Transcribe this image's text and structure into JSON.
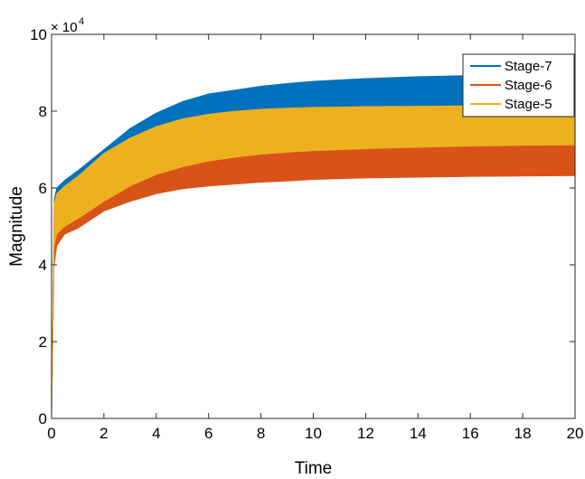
{
  "chart_data": {
    "type": "area",
    "xlabel": "Time",
    "ylabel": "Magnitude",
    "xlim": [
      0,
      20
    ],
    "ylim": [
      0,
      10
    ],
    "y_multiplier_label": {
      "base": "× 10",
      "exponent": "4"
    },
    "x_ticks": [
      "0",
      "2",
      "4",
      "6",
      "8",
      "10",
      "12",
      "14",
      "16",
      "18",
      "20"
    ],
    "y_ticks": [
      "0",
      "2",
      "4",
      "6",
      "8",
      "10"
    ],
    "legend_position": "top-right",
    "grid": false,
    "x": [
      0,
      0.1,
      0.2,
      0.5,
      1,
      2,
      3,
      4,
      5,
      6,
      7,
      8,
      9,
      10,
      12,
      14,
      16,
      18,
      20
    ],
    "series": [
      {
        "name": "Stage-7",
        "color": "#0072BD",
        "upper": [
          0,
          5.7,
          6.0,
          6.2,
          6.45,
          7.0,
          7.55,
          7.95,
          8.25,
          8.45,
          8.55,
          8.65,
          8.72,
          8.78,
          8.85,
          8.9,
          8.93,
          8.95,
          8.96
        ],
        "lower": [
          0,
          4.5,
          4.85,
          5.25,
          5.6,
          6.35,
          6.8,
          7.1,
          7.35,
          7.52,
          7.64,
          7.74,
          7.8,
          7.86,
          7.94,
          7.99,
          8.02,
          8.05,
          8.07
        ]
      },
      {
        "name": "Stage-6",
        "color": "#D95319",
        "upper": [
          0,
          4.8,
          5.1,
          5.45,
          5.8,
          6.4,
          6.8,
          7.05,
          7.3,
          7.5,
          7.62,
          7.72,
          7.8,
          7.86,
          7.95,
          8.0,
          8.04,
          8.07,
          8.09
        ],
        "lower": [
          0,
          4.0,
          4.5,
          4.8,
          4.95,
          5.4,
          5.65,
          5.85,
          5.98,
          6.05,
          6.1,
          6.15,
          6.18,
          6.22,
          6.26,
          6.28,
          6.3,
          6.31,
          6.32
        ]
      },
      {
        "name": "Stage-5",
        "color": "#EDB120",
        "upper": [
          0,
          5.6,
          5.85,
          6.05,
          6.3,
          6.9,
          7.3,
          7.6,
          7.8,
          7.92,
          8.0,
          8.05,
          8.08,
          8.1,
          8.12,
          8.13,
          8.14,
          8.15,
          8.15
        ],
        "lower": [
          0,
          4.5,
          4.8,
          5.0,
          5.2,
          5.65,
          6.05,
          6.35,
          6.55,
          6.7,
          6.8,
          6.88,
          6.93,
          6.97,
          7.02,
          7.06,
          7.09,
          7.11,
          7.12
        ]
      }
    ],
    "draw_order": [
      "Stage-7",
      "Stage-6",
      "Stage-5"
    ]
  }
}
